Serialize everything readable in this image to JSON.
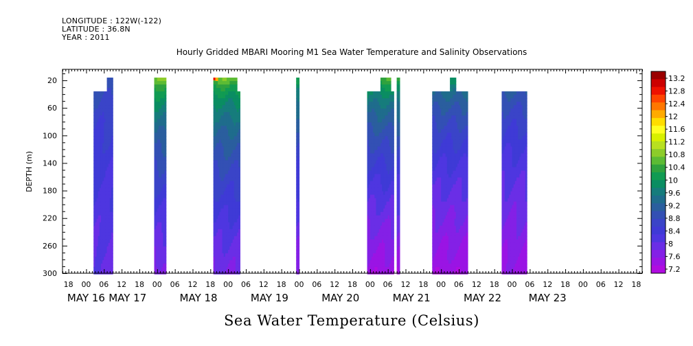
{
  "header": {
    "longitude": "LONGITUDE : 122W(-122)",
    "latitude": "LATITUDE : 36.8N",
    "year": "YEAR : 2011"
  },
  "chart_data": {
    "type": "heatmap",
    "title": "Hourly Gridded MBARI Mooring M1 Sea Water Temperature and Salinity Observations",
    "ylabel": "DEPTH (m)",
    "xlabel": "Sea Water Temperature (Celsius)",
    "y_reversed": true,
    "ylim": [
      300,
      4
    ],
    "y_ticks": [
      20,
      60,
      100,
      140,
      180,
      220,
      260,
      300
    ],
    "x_hour_ticks": [
      {
        "h": 18,
        "label": "18"
      },
      {
        "h": 24,
        "label": "00"
      },
      {
        "h": 30,
        "label": "06"
      },
      {
        "h": 36,
        "label": "12"
      },
      {
        "h": 42,
        "label": "18"
      },
      {
        "h": 48,
        "label": "00"
      },
      {
        "h": 54,
        "label": "06"
      },
      {
        "h": 60,
        "label": "12"
      },
      {
        "h": 66,
        "label": "18"
      },
      {
        "h": 72,
        "label": "00"
      },
      {
        "h": 78,
        "label": "06"
      },
      {
        "h": 84,
        "label": "12"
      },
      {
        "h": 90,
        "label": "18"
      },
      {
        "h": 96,
        "label": "00"
      },
      {
        "h": 102,
        "label": "06"
      },
      {
        "h": 108,
        "label": "12"
      },
      {
        "h": 114,
        "label": "18"
      },
      {
        "h": 120,
        "label": "00"
      },
      {
        "h": 126,
        "label": "06"
      },
      {
        "h": 132,
        "label": "12"
      },
      {
        "h": 138,
        "label": "18"
      },
      {
        "h": 144,
        "label": "00"
      },
      {
        "h": 150,
        "label": "06"
      },
      {
        "h": 156,
        "label": "12"
      },
      {
        "h": 162,
        "label": "18"
      },
      {
        "h": 168,
        "label": "00"
      },
      {
        "h": 174,
        "label": "06"
      },
      {
        "h": 180,
        "label": "12"
      },
      {
        "h": 186,
        "label": "18"
      },
      {
        "h": 192,
        "label": "00"
      },
      {
        "h": 198,
        "label": "06"
      },
      {
        "h": 204,
        "label": "12"
      },
      {
        "h": 210,
        "label": "18"
      }
    ],
    "x_date_labels": [
      {
        "h": 24,
        "label": "MAY 16"
      },
      {
        "h": 38,
        "label": "MAY 17"
      },
      {
        "h": 62,
        "label": "MAY 18"
      },
      {
        "h": 86,
        "label": "MAY 19"
      },
      {
        "h": 110,
        "label": "MAY 20"
      },
      {
        "h": 134,
        "label": "MAY 21"
      },
      {
        "h": 158,
        "label": "MAY 22"
      },
      {
        "h": 180,
        "label": "MAY 23"
      }
    ],
    "xlim_hours": [
      16,
      212
    ],
    "colorbar": {
      "labels": [
        "13.2",
        "12.8",
        "12.4",
        "12",
        "11.6",
        "11.2",
        "10.8",
        "10.4",
        "10",
        "9.6",
        "9.2",
        "8.8",
        "8.4",
        "8",
        "7.6",
        "7.2"
      ],
      "colors": [
        "#9a0000",
        "#cc0000",
        "#ee1100",
        "#ff4400",
        "#ff7700",
        "#ffaa00",
        "#ffdd00",
        "#ffff22",
        "#d8f000",
        "#b8e020",
        "#8ccc2a",
        "#5cbb34",
        "#2fa23e",
        "#119b52",
        "#0a8d62",
        "#167c7c",
        "#1f6c8c",
        "#2a5e9e",
        "#3350b4",
        "#3a44c8",
        "#3f3ad6",
        "#4e36e0",
        "#6a2ee6",
        "#8420e6",
        "#9a14e4",
        "#b00ce0"
      ]
    },
    "data_segments": [
      {
        "start": 26.5,
        "end": 33,
        "top_depth": 40,
        "cap": {
          "start": 31,
          "end": 33,
          "top_depth": 20
        },
        "surface": 9.0,
        "bottom": 7.9,
        "warm_top": false
      },
      {
        "start": 47,
        "end": 51,
        "top_depth": 20,
        "surface": 10.7,
        "bottom": 7.6
      },
      {
        "start": 67,
        "end": 76,
        "top_depth": 20,
        "cut": {
          "start": 75,
          "end": 76,
          "top_depth": 40
        },
        "surface": 10.6,
        "bottom": 7.7,
        "warm_corner": true
      },
      {
        "start": 95,
        "end": 96,
        "top_depth": 20,
        "surface": 10.2,
        "bottom": 7.5
      },
      {
        "start": 119,
        "end": 128,
        "top_depth": 40,
        "caps": [
          {
            "start": 123.5,
            "end": 127,
            "top_depth": 20
          },
          {
            "start": 129,
            "end": 130,
            "top_depth": 20
          }
        ],
        "extra_to": 130,
        "surface": 10.4,
        "bottom": 7.3
      },
      {
        "start": 141,
        "end": 153,
        "top_depth": 40,
        "caps": [
          {
            "start": 147,
            "end": 149,
            "top_depth": 20
          }
        ],
        "surface": 9.8,
        "bottom": 7.3
      },
      {
        "start": 164.5,
        "end": 173,
        "top_depth": 40,
        "surface": 9.4,
        "bottom": 7.4
      }
    ]
  }
}
